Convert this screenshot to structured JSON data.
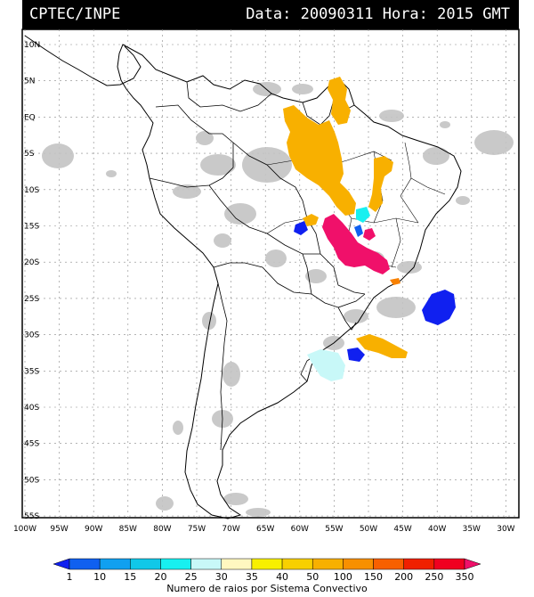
{
  "header": {
    "source": "CPTEC/INPE",
    "datetime": "Data: 20090311 Hora: 2015 GMT"
  },
  "lat_labels": [
    "10N",
    "5N",
    "EQ",
    "5S",
    "10S",
    "15S",
    "20S",
    "25S",
    "30S",
    "35S",
    "40S",
    "45S",
    "50S",
    "55S"
  ],
  "lon_labels": [
    "100W",
    "95W",
    "90W",
    "85W",
    "80W",
    "75W",
    "70W",
    "65W",
    "60W",
    "55W",
    "50W",
    "45W",
    "40W",
    "35W",
    "30W"
  ],
  "colorbar": {
    "labels": [
      "1",
      "10",
      "15",
      "20",
      "25",
      "30",
      "35",
      "40",
      "50",
      "100",
      "150",
      "200",
      "250",
      "350"
    ],
    "colors": [
      "#1020f0",
      "#1060f0",
      "#10a0f0",
      "#10c8e8",
      "#18f0f0",
      "#c8f8f8",
      "#fff8c0",
      "#f8f000",
      "#f8d000",
      "#f8b000",
      "#f89000",
      "#f86000",
      "#f02000",
      "#f00020",
      "#f0106a"
    ],
    "title": "Numero de raios por Sistema Convectivo"
  }
}
